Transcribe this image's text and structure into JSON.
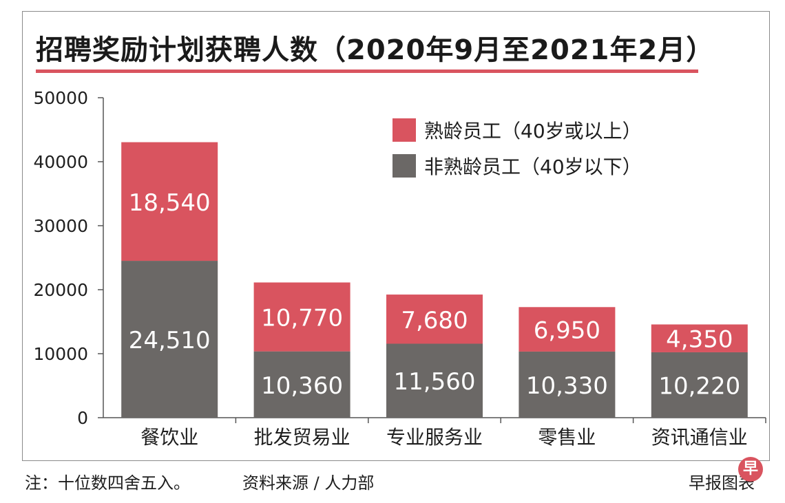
{
  "header": {
    "title": "招聘奖励计划获聘人数（2020年9月至2021年2月）"
  },
  "footer": {
    "note": "注：十位数四舍五入。",
    "source": "资料来源 / 人力部",
    "credit": "早报图表",
    "logo_char": "早"
  },
  "colors": {
    "senior": "#d9545f",
    "junior": "#6b6866",
    "accent": "#d9545f"
  },
  "chart_data": {
    "type": "bar",
    "stacked": true,
    "title": "招聘奖励计划获聘人数（2020年9月至2021年2月）",
    "categories": [
      "餐饮业",
      "批发贸易业",
      "专业服务业",
      "零售业",
      "资讯通信业"
    ],
    "series": [
      {
        "name": "非熟龄员工（40岁以下）",
        "color": "#6b6866",
        "values": [
          24510,
          10360,
          11560,
          10330,
          10220
        ],
        "labels": [
          "24,510",
          "10,360",
          "11,560",
          "10,330",
          "10,220"
        ]
      },
      {
        "name": "熟龄员工（40岁或以上）",
        "color": "#d9545f",
        "values": [
          18540,
          10770,
          7680,
          6950,
          4350
        ],
        "labels": [
          "18,540",
          "10,770",
          "7,680",
          "6,950",
          "4,350"
        ]
      }
    ],
    "legend_order": [
      "熟龄员工（40岁或以上）",
      "非熟龄员工（40岁以下）"
    ],
    "legend_position": "top-right",
    "ylim": [
      0,
      50000
    ],
    "yticks": [
      "0",
      "10000",
      "20000",
      "30000",
      "40000",
      "50000"
    ],
    "grid": false
  }
}
